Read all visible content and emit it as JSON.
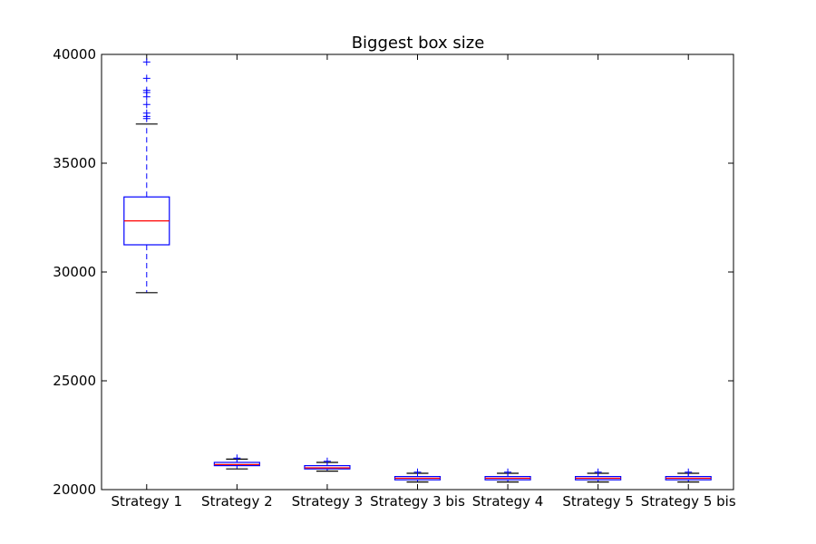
{
  "chart_data": {
    "type": "box",
    "title": "Biggest box size",
    "xlabel": "",
    "ylabel": "",
    "ylim": [
      20000,
      40000
    ],
    "yticks": [
      20000,
      25000,
      30000,
      35000,
      40000
    ],
    "grid": false,
    "colors": {
      "box": "#0000ff",
      "median": "#ff0000",
      "whisker": "#0000ff",
      "cap": "#000000",
      "flier": "#0000ff"
    },
    "categories": [
      "Strategy 1",
      "Strategy 2",
      "Strategy 3",
      "Strategy 3 bis",
      "Strategy 4",
      "Strategy 5",
      "Strategy 5 bis"
    ],
    "series": [
      {
        "category": "Strategy 1",
        "whisker_low": 29050,
        "q1": 31250,
        "median": 32350,
        "q3": 33450,
        "whisker_high": 36800,
        "fliers": [
          37050,
          37150,
          37300,
          37700,
          38050,
          38250,
          38350,
          38900,
          39650
        ]
      },
      {
        "category": "Strategy 2",
        "whisker_low": 20950,
        "q1": 21100,
        "median": 21150,
        "q3": 21250,
        "whisker_high": 21400,
        "fliers": [
          21450
        ]
      },
      {
        "category": "Strategy 3",
        "whisker_low": 20850,
        "q1": 20950,
        "median": 21000,
        "q3": 21100,
        "whisker_high": 21250,
        "fliers": [
          21300
        ]
      },
      {
        "category": "Strategy 3 bis",
        "whisker_low": 20350,
        "q1": 20450,
        "median": 20520,
        "q3": 20600,
        "whisker_high": 20750,
        "fliers": [
          20800
        ]
      },
      {
        "category": "Strategy 4",
        "whisker_low": 20350,
        "q1": 20450,
        "median": 20520,
        "q3": 20600,
        "whisker_high": 20750,
        "fliers": [
          20800
        ]
      },
      {
        "category": "Strategy 5",
        "whisker_low": 20350,
        "q1": 20450,
        "median": 20520,
        "q3": 20600,
        "whisker_high": 20750,
        "fliers": [
          20800
        ]
      },
      {
        "category": "Strategy 5 bis",
        "whisker_low": 20350,
        "q1": 20450,
        "median": 20520,
        "q3": 20600,
        "whisker_high": 20750,
        "fliers": [
          20800
        ]
      }
    ]
  }
}
